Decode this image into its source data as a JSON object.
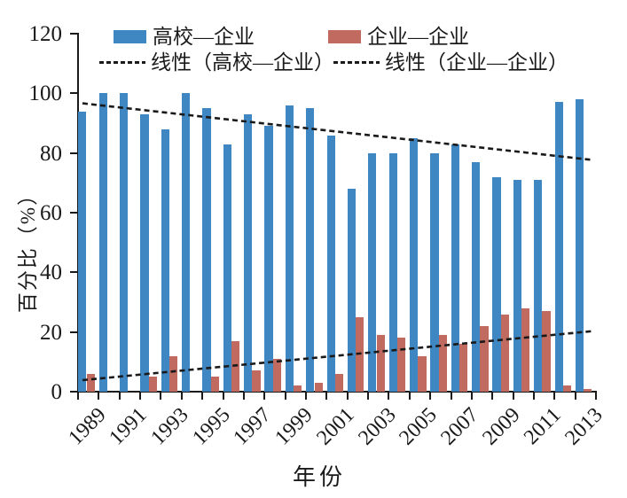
{
  "chart_data": {
    "type": "bar",
    "title": "",
    "xlabel": "年份",
    "ylabel": "百分比（%）",
    "ylim": [
      0,
      120
    ],
    "yticks": [
      0,
      20,
      40,
      60,
      80,
      100,
      120
    ],
    "grid": false,
    "legend_position": "top",
    "categories": [
      1989,
      1990,
      1991,
      1992,
      1993,
      1994,
      1995,
      1996,
      1997,
      1998,
      1999,
      2000,
      2001,
      2002,
      2003,
      2004,
      2005,
      2006,
      2007,
      2008,
      2009,
      2010,
      2011,
      2012,
      2013
    ],
    "xtick_labels": [
      "1989",
      "1991",
      "1993",
      "1995",
      "1997",
      "1999",
      "2001",
      "2003",
      "2005",
      "2007",
      "2009",
      "2011",
      "2013"
    ],
    "series": [
      {
        "name": "高校—企业",
        "color": "#3e87c3",
        "values": [
          94,
          100,
          100,
          93,
          88,
          100,
          95,
          83,
          93,
          89,
          96,
          95,
          86,
          68,
          80,
          80,
          85,
          80,
          83,
          77,
          72,
          71,
          71,
          97,
          98
        ]
      },
      {
        "name": "企业—企业",
        "color": "#c16a5f",
        "values": [
          6,
          0,
          0,
          5,
          12,
          0,
          5,
          17,
          7,
          11,
          2,
          3,
          6,
          25,
          19,
          18,
          12,
          19,
          16,
          22,
          26,
          28,
          27,
          2,
          1
        ]
      }
    ],
    "trendlines": [
      {
        "label": "线性（高校—企业）",
        "value_start": 96.5,
        "value_end": 78,
        "color": "#1a1a1a",
        "style": "dashed"
      },
      {
        "label": "线性（企业—企业）",
        "value_start": 4,
        "value_end": 20,
        "color": "#1a1a1a",
        "style": "dashed"
      }
    ]
  }
}
